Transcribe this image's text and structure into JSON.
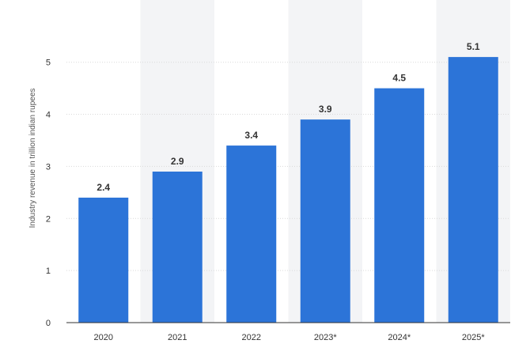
{
  "chart_data": {
    "type": "bar",
    "title": "",
    "xlabel": "",
    "ylabel": "Industry revenue in trillion indian rupees",
    "categories": [
      "2020",
      "2021",
      "2022",
      "2023*",
      "2024*",
      "2025*"
    ],
    "values": [
      2.4,
      2.9,
      3.4,
      3.9,
      4.5,
      5.1
    ],
    "data_labels": [
      "2.4",
      "2.9",
      "3.4",
      "3.9",
      "4.5",
      "5.1"
    ],
    "yticks": [
      0,
      1,
      2,
      3,
      4,
      5
    ],
    "ylim": [
      0,
      5.8
    ],
    "grid": true,
    "legend": "none",
    "bar_color": "#2c74d8",
    "alt_column_shading": "#f3f4f6"
  }
}
